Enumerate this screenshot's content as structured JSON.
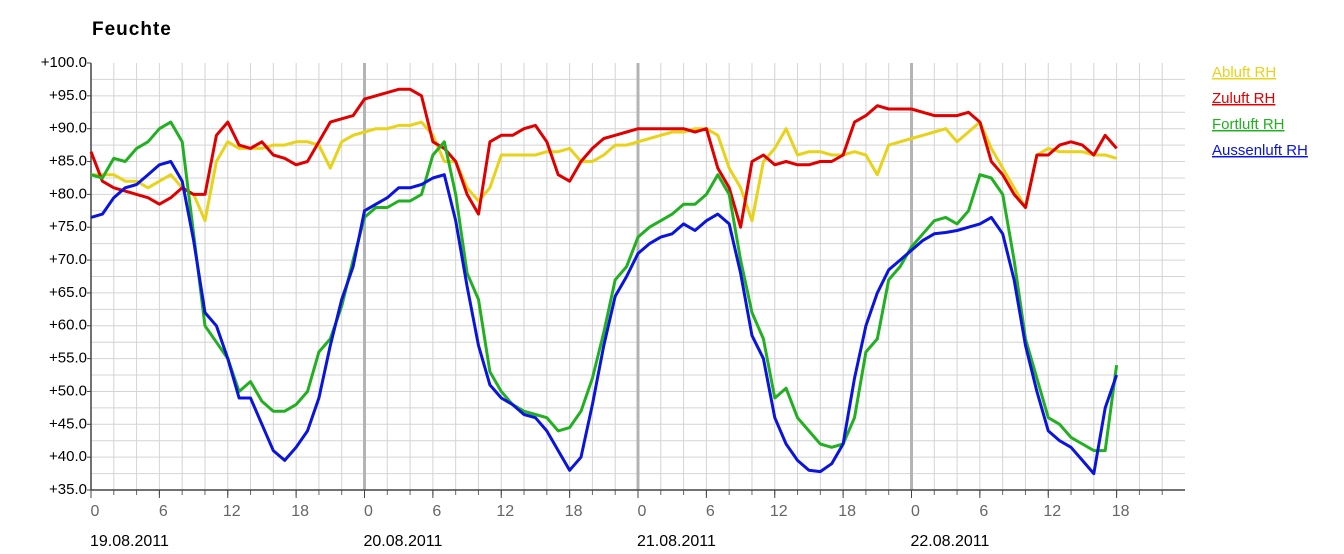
{
  "chart_data": {
    "type": "line",
    "title": "Feuchte",
    "x": [
      0,
      1,
      2,
      3,
      4,
      5,
      6,
      7,
      8,
      9,
      10,
      11,
      12,
      13,
      14,
      15,
      16,
      17,
      18,
      19,
      20,
      21,
      22,
      23,
      24,
      25,
      26,
      27,
      28,
      29,
      30,
      31,
      32,
      33,
      34,
      35,
      36,
      37,
      38,
      39,
      40,
      41,
      42,
      43,
      44,
      45,
      46,
      47,
      48,
      49,
      50,
      51,
      52,
      53,
      54,
      55,
      56,
      57,
      58,
      59,
      60,
      61,
      62,
      63,
      64,
      65,
      66,
      67,
      68,
      69,
      70,
      71,
      72,
      73,
      74,
      75,
      76,
      77,
      78,
      79,
      80,
      81,
      82,
      83,
      84,
      85,
      86,
      87,
      88,
      89,
      90
    ],
    "series": [
      {
        "name": "Abluft RH",
        "color": "#e8d21a",
        "values": [
          83,
          83,
          83,
          82,
          82,
          81,
          82,
          83,
          81,
          80,
          76,
          85,
          88,
          87,
          87,
          87,
          87.5,
          87.5,
          88,
          88,
          87.5,
          84,
          88,
          89,
          89.5,
          90,
          90,
          90.5,
          90.5,
          91,
          89,
          85,
          85,
          81,
          79,
          81,
          86,
          86,
          86,
          86,
          86.5,
          86.5,
          87,
          85,
          85,
          86,
          87.5,
          87.5,
          88,
          88.5,
          89,
          89.5,
          89.5,
          90,
          90,
          89,
          84,
          81,
          76,
          85,
          87,
          90,
          86,
          86.5,
          86.5,
          86,
          86,
          86.5,
          86,
          83,
          87.5,
          88,
          88.5,
          89,
          89.5,
          90,
          88,
          89.5,
          91,
          87,
          84,
          81,
          78,
          86,
          87,
          86.5,
          86.5,
          86.5,
          86,
          86,
          85.5
        ]
      },
      {
        "name": "Zuluft RH",
        "color": "#e00000",
        "values": [
          86.5,
          82,
          81,
          80.5,
          80,
          79.5,
          78.5,
          79.5,
          81,
          80,
          80,
          89,
          91,
          87.5,
          87,
          88,
          86,
          85.5,
          84.5,
          85,
          88,
          91,
          91.5,
          92,
          94.5,
          95,
          95.5,
          96,
          96,
          95,
          88,
          87,
          85,
          80,
          77,
          88,
          89,
          89,
          90,
          90.5,
          88,
          83,
          82,
          85,
          87,
          88.5,
          89,
          89.5,
          90,
          90,
          90,
          90,
          90,
          89.5,
          90,
          84,
          81,
          75,
          85,
          86,
          84.5,
          85,
          84.5,
          84.5,
          85,
          85,
          86,
          91,
          92,
          93.5,
          93,
          93,
          93,
          92.5,
          92,
          92,
          92,
          92.5,
          91,
          85,
          83,
          80,
          78,
          86,
          86,
          87.5,
          88,
          87.5,
          86,
          89,
          87
        ]
      },
      {
        "name": "Fortluft RH",
        "color": "#22b022",
        "values": [
          83,
          82.5,
          85.5,
          85,
          87,
          88,
          90,
          91,
          88,
          74,
          60,
          57.5,
          55,
          50,
          51.5,
          48.5,
          47,
          47,
          48,
          50,
          56,
          58,
          63,
          70,
          76.5,
          78,
          78,
          79,
          79,
          80,
          86,
          88,
          80,
          68,
          64,
          53,
          50,
          48,
          47,
          46.5,
          46,
          44,
          44.5,
          47,
          52,
          59,
          67,
          69,
          73.5,
          75,
          76,
          77,
          78.5,
          78.5,
          80,
          83,
          80,
          70,
          62,
          58,
          49,
          50.5,
          46,
          44,
          42,
          41.5,
          42,
          46,
          56,
          58,
          67,
          69,
          72,
          74,
          76,
          76.5,
          75.5,
          77.5,
          83,
          82.5,
          80,
          70,
          58,
          52,
          46,
          45,
          43,
          42,
          41,
          41,
          54
        ]
      },
      {
        "name": "Aussenluft RH",
        "color": "#0a14dc",
        "values": [
          76.5,
          77,
          79.5,
          81,
          81.5,
          83,
          84.5,
          85,
          82,
          73,
          62,
          60,
          55,
          49,
          49,
          45,
          41,
          39.5,
          41.5,
          44,
          49,
          57,
          64,
          69,
          77.5,
          78.5,
          79.5,
          81,
          81,
          81.5,
          82.5,
          83,
          76,
          66,
          57,
          51,
          49,
          48,
          46.5,
          46,
          44,
          41,
          38,
          40,
          48,
          57,
          64.5,
          67.5,
          71,
          72.5,
          73.5,
          74,
          75.5,
          74.5,
          76,
          77,
          75.5,
          68,
          58.5,
          55,
          46,
          42,
          39.5,
          38,
          37.8,
          39,
          42,
          52,
          60,
          65,
          68.5,
          70,
          71.5,
          73,
          74,
          74.2,
          74.5,
          75,
          75.5,
          76.5,
          74,
          67,
          57,
          50,
          44,
          42.5,
          41.5,
          39.5,
          37.5,
          47.5,
          52.5
        ]
      }
    ],
    "xlim": [
      0,
      96
    ],
    "xticks": [
      0,
      6,
      12,
      18,
      {
        "value": 24,
        "label": "0"
      },
      {
        "value": 30,
        "label": "6"
      },
      {
        "value": 36,
        "label": "12"
      },
      {
        "value": 42,
        "label": "18"
      },
      {
        "value": 48,
        "label": "0"
      },
      {
        "value": 54,
        "label": "6"
      },
      {
        "value": 60,
        "label": "12"
      },
      {
        "value": 66,
        "label": "18"
      },
      {
        "value": 72,
        "label": "0"
      },
      {
        "value": 78,
        "label": "6"
      },
      {
        "value": 84,
        "label": "12"
      },
      {
        "value": 90,
        "label": "18"
      }
    ],
    "x_date_labels": [
      {
        "value": 0,
        "label": "19.08.2011"
      },
      {
        "value": 24,
        "label": "20.08.2011"
      },
      {
        "value": 48,
        "label": "21.08.2011"
      },
      {
        "value": 72,
        "label": "22.08.2011"
      }
    ],
    "x_grid": [
      2,
      4,
      6,
      8,
      10,
      12,
      14,
      16,
      18,
      20,
      22,
      26,
      28,
      30,
      32,
      34,
      36,
      38,
      40,
      42,
      44,
      46,
      50,
      52,
      54,
      56,
      58,
      60,
      62,
      64,
      66,
      68,
      70,
      74,
      76,
      78,
      80,
      82,
      84,
      86,
      88,
      90,
      92,
      94
    ],
    "ylim": [
      35,
      100
    ],
    "yticks": [
      {
        "value": 35,
        "label": "+35.0"
      },
      {
        "value": 40,
        "label": "+40.0"
      },
      {
        "value": 45,
        "label": "+45.0"
      },
      {
        "value": 50,
        "label": "+50.0"
      },
      {
        "value": 55,
        "label": "+55.0"
      },
      {
        "value": 60,
        "label": "+60.0"
      },
      {
        "value": 65,
        "label": "+65.0"
      },
      {
        "value": 70,
        "label": "+70.0"
      },
      {
        "value": 75,
        "label": "+75.0"
      },
      {
        "value": 80,
        "label": "+80.0"
      },
      {
        "value": 85,
        "label": "+85.0"
      },
      {
        "value": 90,
        "label": "+90.0"
      },
      {
        "value": 95,
        "label": "+95.0"
      },
      {
        "value": 100,
        "label": "+100.0"
      }
    ],
    "y_grid": [
      37.5,
      40,
      42.5,
      45,
      47.5,
      50,
      52.5,
      55,
      57.5,
      60,
      62.5,
      65,
      67.5,
      70,
      72.5,
      75,
      77.5,
      80,
      82.5,
      85,
      87.5,
      90,
      92.5,
      95,
      97.5
    ],
    "grid": true,
    "legend": "right"
  }
}
